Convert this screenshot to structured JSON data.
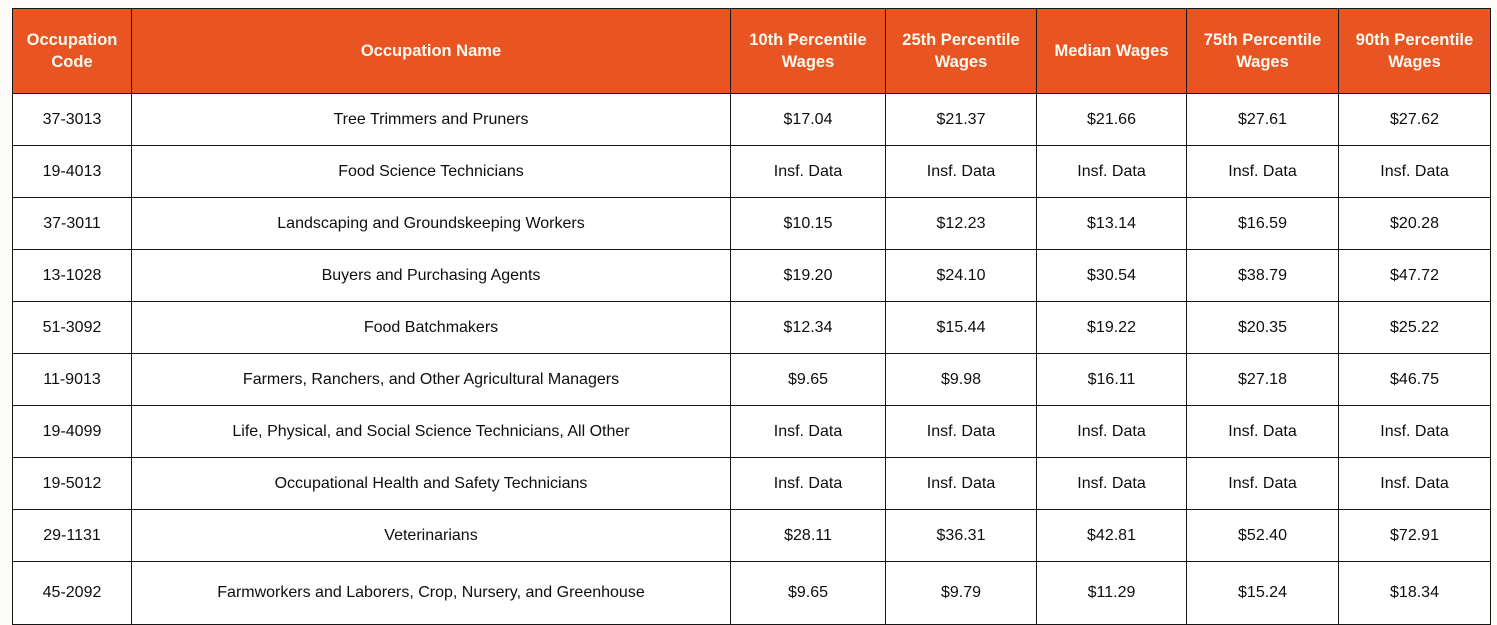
{
  "colors": {
    "header_background": "#E85523",
    "header_text": "#FDFAF0",
    "border": "#161616",
    "row_background": "#FFFFFF",
    "body_text": "#0E0E0E",
    "page_background": "#FDFCF8"
  },
  "table": {
    "columns": [
      {
        "id": "occupation-code",
        "label": "Occupation Code"
      },
      {
        "id": "occupation-name",
        "label": "Occupation Name"
      },
      {
        "id": "p10-wages",
        "label": "10th Percentile Wages"
      },
      {
        "id": "p25-wages",
        "label": "25th Percentile Wages"
      },
      {
        "id": "median-wages",
        "label": "Median Wages"
      },
      {
        "id": "p75-wages",
        "label": "75th Percentile Wages"
      },
      {
        "id": "p90-wages",
        "label": "90th Percentile Wages"
      }
    ],
    "rows": [
      [
        "37-3013",
        "Tree Trimmers and Pruners",
        "$17.04",
        "$21.37",
        "$21.66",
        "$27.61",
        "$27.62"
      ],
      [
        "19-4013",
        "Food Science Technicians",
        "Insf. Data",
        "Insf. Data",
        "Insf. Data",
        "Insf. Data",
        "Insf. Data"
      ],
      [
        "37-3011",
        "Landscaping and Groundskeeping Workers",
        "$10.15",
        "$12.23",
        "$13.14",
        "$16.59",
        "$20.28"
      ],
      [
        "13-1028",
        "Buyers and Purchasing Agents",
        "$19.20",
        "$24.10",
        "$30.54",
        "$38.79",
        "$47.72"
      ],
      [
        "51-3092",
        "Food Batchmakers",
        "$12.34",
        "$15.44",
        "$19.22",
        "$20.35",
        "$25.22"
      ],
      [
        "11-9013",
        "Farmers, Ranchers, and Other Agricultural Managers",
        "$9.65",
        "$9.98",
        "$16.11",
        "$27.18",
        "$46.75"
      ],
      [
        "19-4099",
        "Life, Physical, and Social Science Technicians, All Other",
        "Insf. Data",
        "Insf. Data",
        "Insf. Data",
        "Insf. Data",
        "Insf. Data"
      ],
      [
        "19-5012",
        "Occupational Health and Safety Technicians",
        "Insf. Data",
        "Insf. Data",
        "Insf. Data",
        "Insf. Data",
        "Insf. Data"
      ],
      [
        "29-1131",
        "Veterinarians",
        "$28.11",
        "$36.31",
        "$42.81",
        "$52.40",
        "$72.91"
      ],
      [
        "45-2092",
        "Farmworkers and Laborers, Crop, Nursery, and Greenhouse",
        "$9.65",
        "$9.79",
        "$11.29",
        "$15.24",
        "$18.34"
      ]
    ]
  },
  "chart_data": {
    "type": "table",
    "title": "",
    "columns": [
      "Occupation Code",
      "Occupation Name",
      "10th Percentile Wages",
      "25th Percentile Wages",
      "Median Wages",
      "75th Percentile Wages",
      "90th Percentile Wages"
    ],
    "rows": [
      [
        "37-3013",
        "Tree Trimmers and Pruners",
        "$17.04",
        "$21.37",
        "$21.66",
        "$27.61",
        "$27.62"
      ],
      [
        "19-4013",
        "Food Science Technicians",
        "Insf. Data",
        "Insf. Data",
        "Insf. Data",
        "Insf. Data",
        "Insf. Data"
      ],
      [
        "37-3011",
        "Landscaping and Groundskeeping Workers",
        "$10.15",
        "$12.23",
        "$13.14",
        "$16.59",
        "$20.28"
      ],
      [
        "13-1028",
        "Buyers and Purchasing Agents",
        "$19.20",
        "$24.10",
        "$30.54",
        "$38.79",
        "$47.72"
      ],
      [
        "51-3092",
        "Food Batchmakers",
        "$12.34",
        "$15.44",
        "$19.22",
        "$20.35",
        "$25.22"
      ],
      [
        "11-9013",
        "Farmers, Ranchers, and Other Agricultural Managers",
        "$9.65",
        "$9.98",
        "$16.11",
        "$27.18",
        "$46.75"
      ],
      [
        "19-4099",
        "Life, Physical, and Social Science Technicians, All Other",
        "Insf. Data",
        "Insf. Data",
        "Insf. Data",
        "Insf. Data",
        "Insf. Data"
      ],
      [
        "19-5012",
        "Occupational Health and Safety Technicians",
        "Insf. Data",
        "Insf. Data",
        "Insf. Data",
        "Insf. Data",
        "Insf. Data"
      ],
      [
        "29-1131",
        "Veterinarians",
        "$28.11",
        "$36.31",
        "$42.81",
        "$52.40",
        "$72.91"
      ],
      [
        "45-2092",
        "Farmworkers and Laborers, Crop, Nursery, and Greenhouse",
        "$9.65",
        "$9.79",
        "$11.29",
        "$15.24",
        "$18.34"
      ]
    ]
  }
}
